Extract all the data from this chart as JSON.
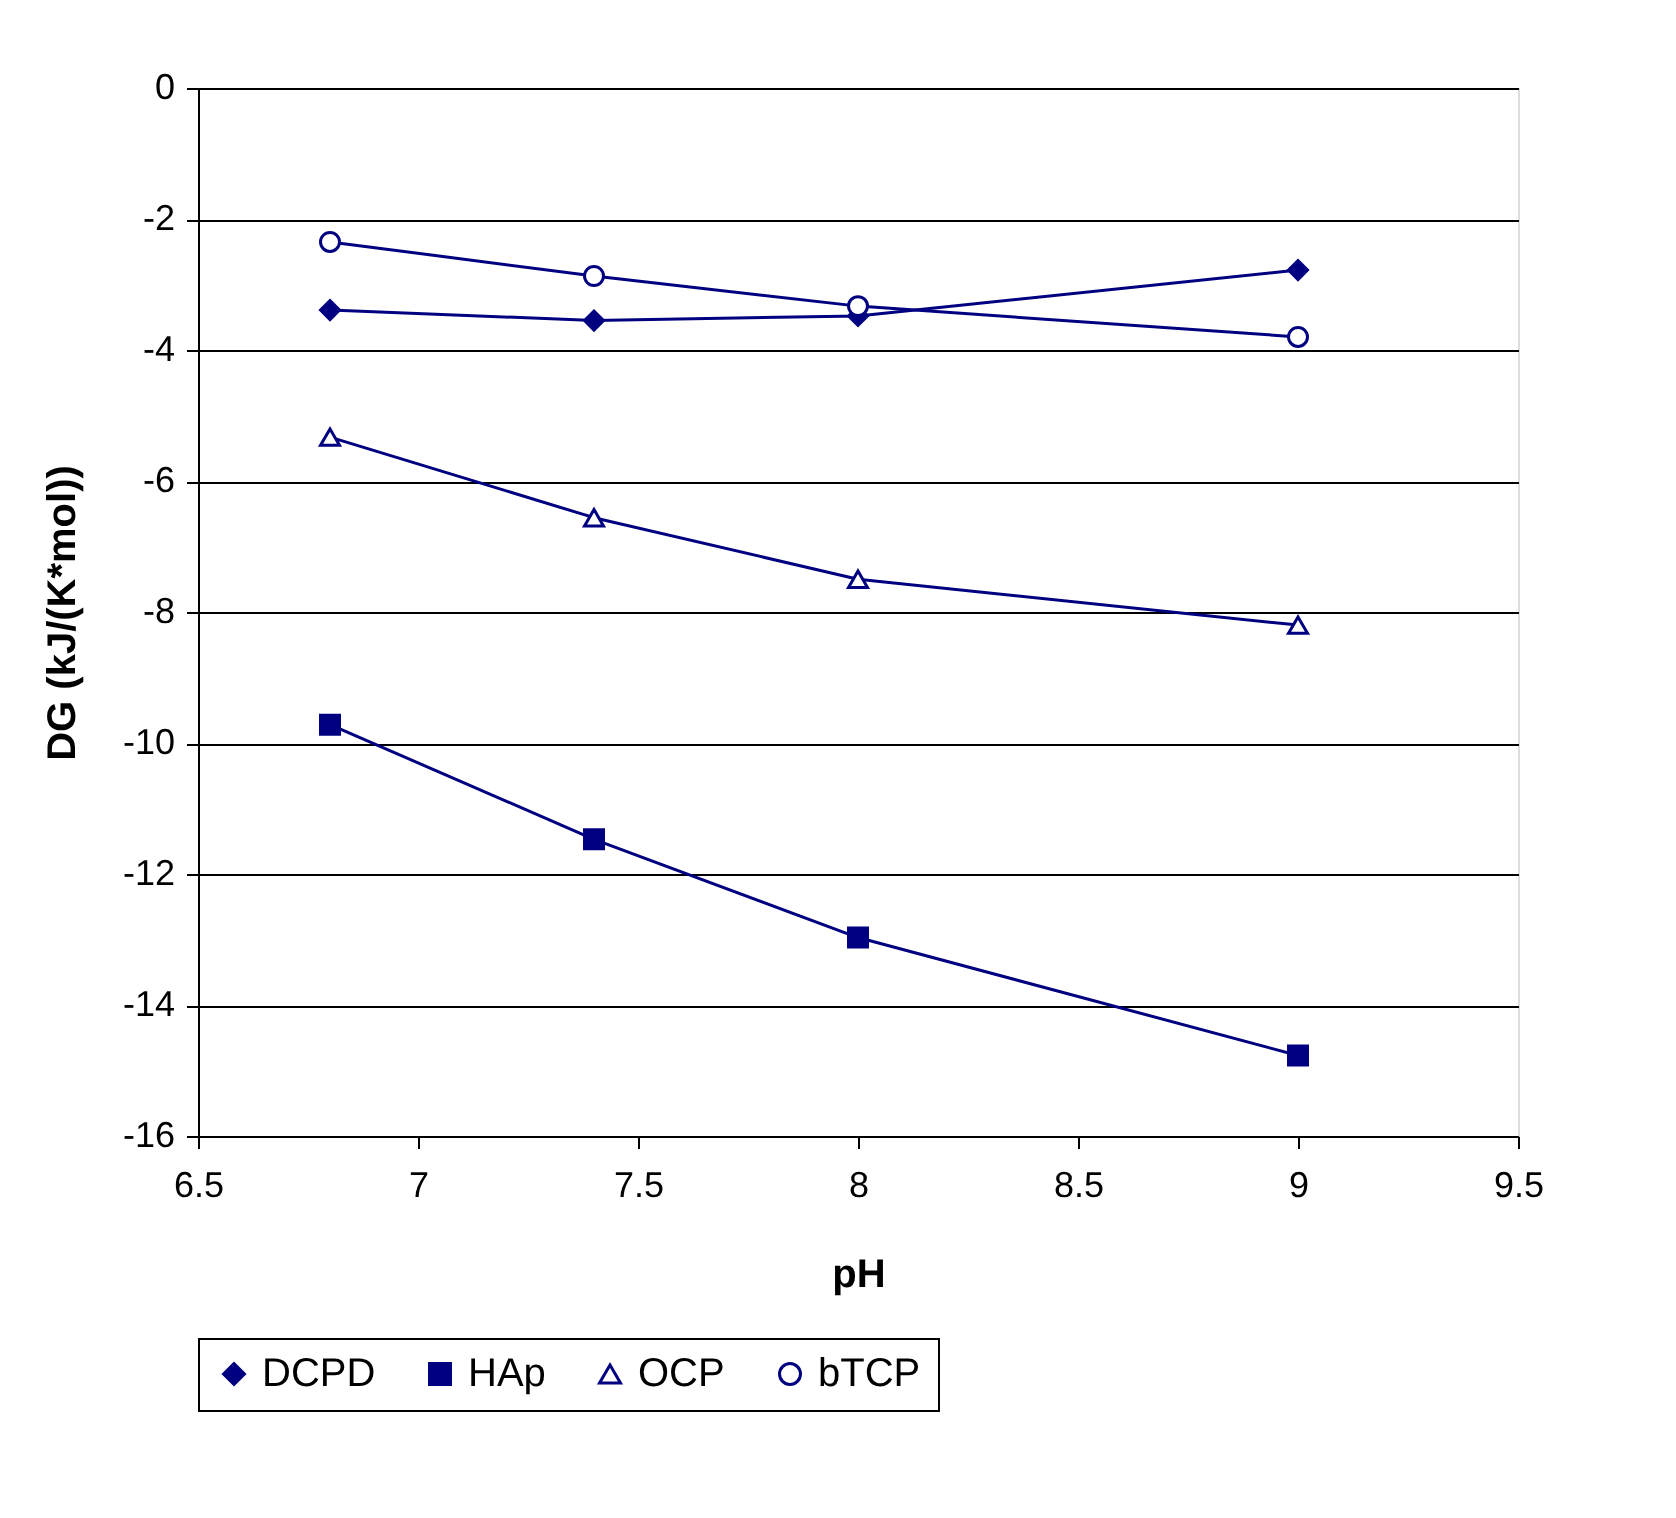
{
  "chart_data": {
    "type": "line",
    "xlabel": "pH",
    "ylabel": "DG (kJ/(K*mol))",
    "xlim": [
      6.5,
      9.5
    ],
    "xticks": [
      6.5,
      7,
      7.5,
      8,
      8.5,
      9,
      9.5
    ],
    "ylim": [
      -16,
      0
    ],
    "yticks": [
      -16,
      -14,
      -12,
      -10,
      -8,
      -6,
      -4,
      -2,
      0
    ],
    "grid": "y",
    "legend": "bottom",
    "series": [
      {
        "name": "DCPD",
        "color": "#000080",
        "marker": "diamond",
        "x": [
          6.8,
          7.4,
          8,
          9
        ],
        "values": [
          -3.39,
          -3.55,
          -3.48,
          -2.78
        ]
      },
      {
        "name": "HAp",
        "color": "#000080",
        "marker": "square",
        "x": [
          6.8,
          7.4,
          8,
          9
        ],
        "values": [
          -9.72,
          -11.47,
          -12.97,
          -14.77
        ]
      },
      {
        "name": "OCP",
        "color": "#000080",
        "marker": "triangle",
        "x": [
          6.8,
          7.4,
          8,
          9
        ],
        "values": [
          -5.33,
          -6.56,
          -7.5,
          -8.2
        ]
      },
      {
        "name": "bTCP",
        "color": "#000080",
        "marker": "circle",
        "x": [
          6.8,
          7.4,
          8,
          9
        ],
        "values": [
          -2.35,
          -2.87,
          -3.33,
          -3.8
        ]
      }
    ]
  }
}
